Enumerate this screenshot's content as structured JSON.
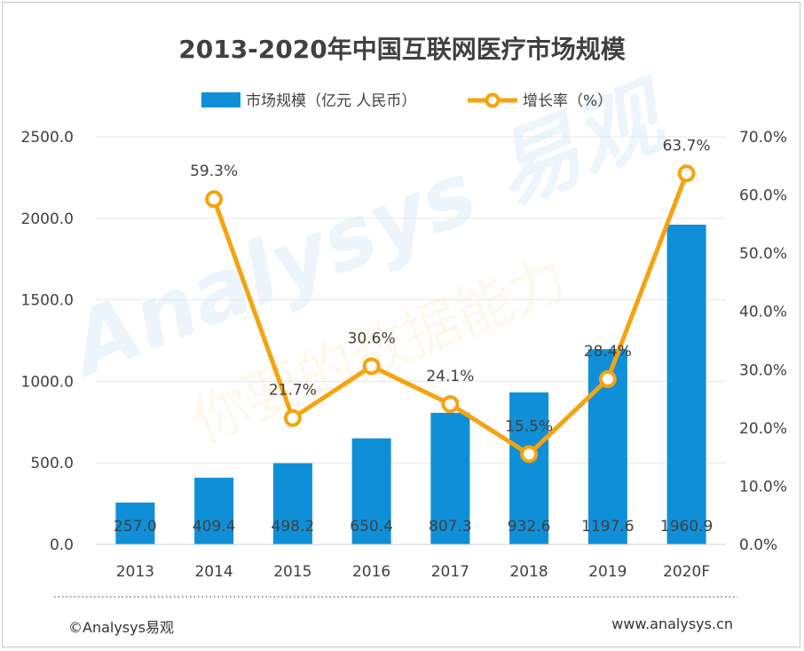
{
  "chart_data": {
    "type": "bar",
    "title": "2013-2020年中国互联网医疗市场规模",
    "categories": [
      "2013",
      "2014",
      "2015",
      "2016",
      "2017",
      "2018",
      "2019",
      "2020F"
    ],
    "series": [
      {
        "name": "市场规模（亿元 人民币）",
        "type": "bar",
        "axis": "left",
        "values": [
          257.0,
          409.4,
          498.2,
          650.4,
          807.3,
          932.6,
          1197.6,
          1960.9
        ],
        "labels": [
          "257.0",
          "409.4",
          "498.2",
          "650.4",
          "807.3",
          "932.6",
          "1197.6",
          "1960.9"
        ]
      },
      {
        "name": "增长率（%）",
        "type": "line",
        "axis": "right",
        "values": [
          null,
          59.3,
          21.7,
          30.6,
          24.1,
          15.5,
          28.4,
          63.7
        ],
        "labels": [
          "",
          "59.3%",
          "21.7%",
          "30.6%",
          "24.1%",
          "15.5%",
          "28.4%",
          "63.7%"
        ]
      }
    ],
    "y_left": {
      "range": [
        0,
        2500
      ],
      "ticks": [
        "0.0",
        "500.0",
        "1000.0",
        "1500.0",
        "2000.0",
        "2500.0"
      ]
    },
    "y_right": {
      "range": [
        0,
        70
      ],
      "ticks": [
        "0.0%",
        "10.0%",
        "20.0%",
        "30.0%",
        "40.0%",
        "50.0%",
        "60.0%",
        "70.0%"
      ]
    },
    "legend": "top",
    "grid": true,
    "colors": {
      "bar": "#0f8fd8",
      "line": "#f5a30f",
      "text": "#404040",
      "grid": "#e6e6e6"
    }
  },
  "watermark": {
    "brand": "Analysys 易观",
    "slogan": "你要的数据能力"
  },
  "footer": {
    "copyright": "©Analysys易观",
    "url": "www.analysys.cn"
  }
}
